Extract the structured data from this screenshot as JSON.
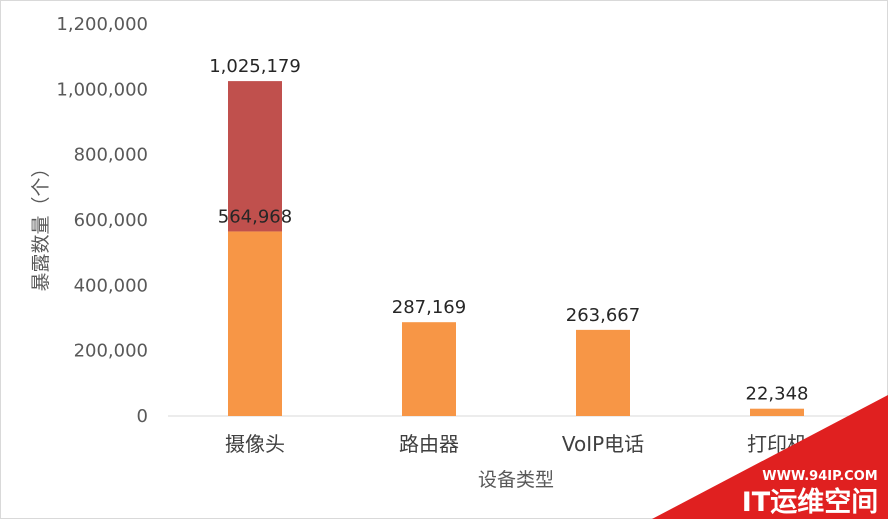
{
  "chart_data": {
    "type": "bar",
    "stacked": true,
    "categories": [
      "摄像头",
      "路由器",
      "VoIP电话",
      "打印机"
    ],
    "series": [
      {
        "values": [
          564968,
          287169,
          263667,
          22348
        ],
        "color": "#F79646"
      },
      {
        "values": [
          460211,
          0,
          0,
          0
        ],
        "color": "#C0504D"
      }
    ],
    "data_labels": [
      {
        "category": 0,
        "value": 1025179,
        "text": "1,025,179"
      },
      {
        "category": 0,
        "value": 564968,
        "text": "564,968"
      },
      {
        "category": 1,
        "value": 287169,
        "text": "287,169"
      },
      {
        "category": 2,
        "value": 263667,
        "text": "263,667"
      },
      {
        "category": 3,
        "value": 22348,
        "text": "22,348"
      }
    ],
    "yticks": [
      "0",
      "200,000",
      "400,000",
      "600,000",
      "800,000",
      "1,000,000",
      "1,200,000"
    ],
    "ylim": [
      0,
      1200000
    ],
    "xlabel": "设备类型",
    "ylabel": "暴露数量（个）",
    "grid": false,
    "legend": "none"
  },
  "watermark": {
    "url": "WWW.94IP.COM",
    "brand": "IT运维空间",
    "color": "#E02020"
  }
}
